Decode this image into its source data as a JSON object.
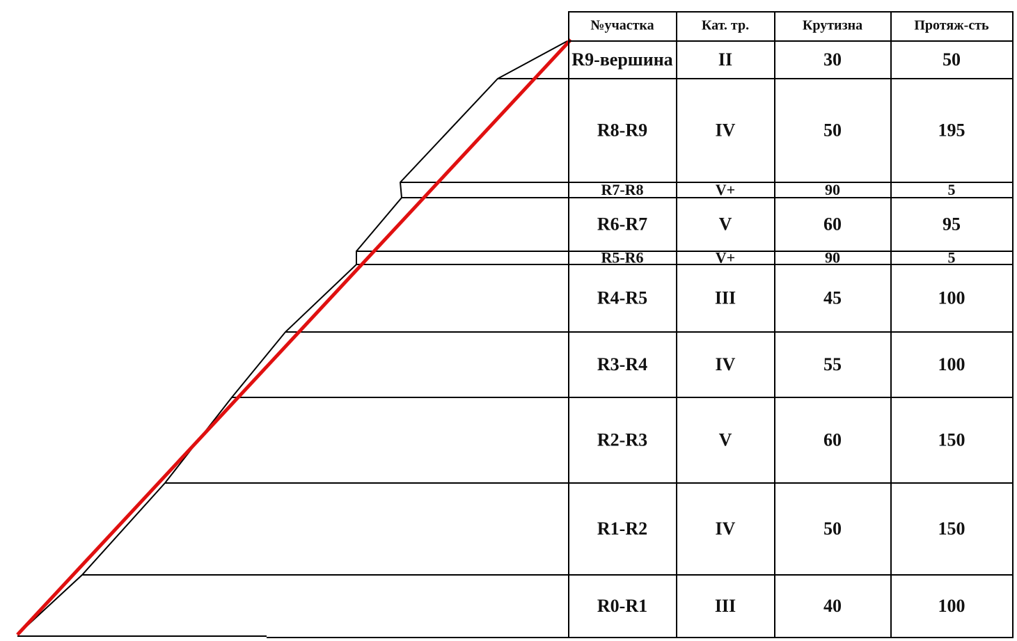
{
  "table": {
    "header": [
      "№участка",
      "Кат. тр.",
      "Крутизна",
      "Протяж-сть"
    ],
    "rows": [
      [
        "R9-вершина",
        "II",
        30,
        50
      ],
      [
        "R8-R9",
        "IV",
        50,
        195
      ],
      [
        "R7-R8",
        "V+",
        90,
        5
      ],
      [
        "R6-R7",
        "V",
        60,
        95
      ],
      [
        "R5-R6",
        "V+",
        90,
        5
      ],
      [
        "R4-R5",
        "III",
        45,
        100
      ],
      [
        "R3-R4",
        "IV",
        55,
        100
      ],
      [
        "R2-R3",
        "V",
        60,
        150
      ],
      [
        "R1-R2",
        "IV",
        50,
        150
      ],
      [
        "R0-R1",
        "III",
        40,
        100
      ]
    ]
  }
}
